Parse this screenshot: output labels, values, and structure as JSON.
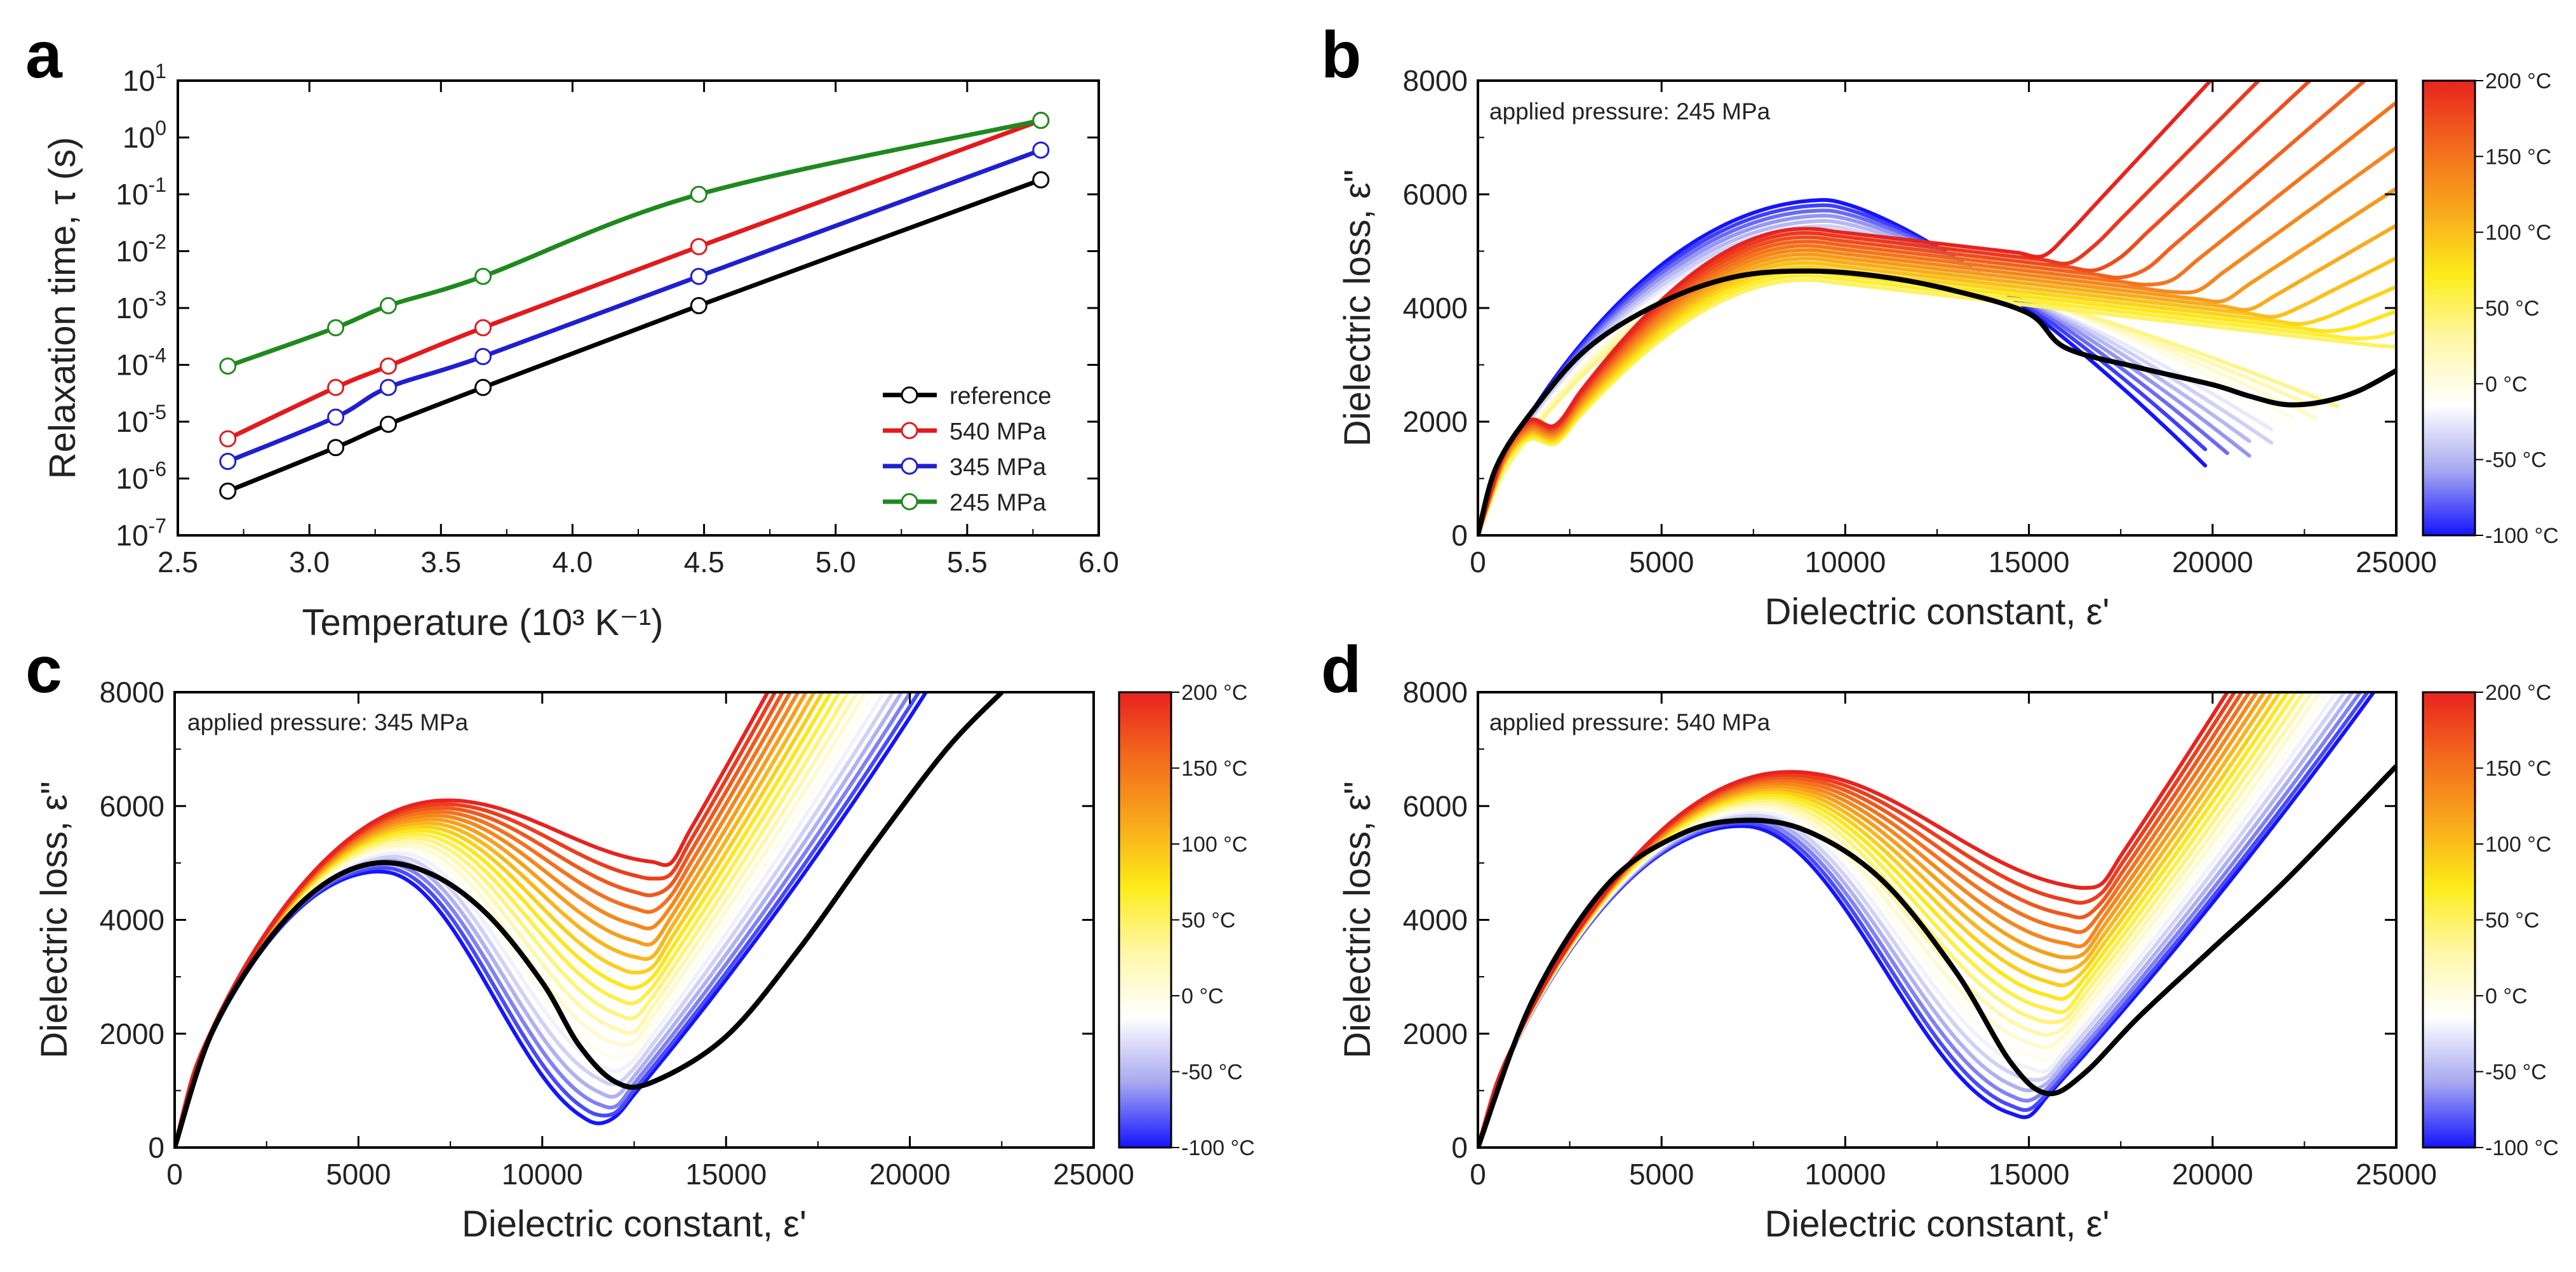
{
  "chart_data": [
    {
      "panel": "a",
      "type": "line",
      "xlabel": "Temperature (10³ K⁻¹)",
      "ylabel": "Relaxation time, τ (s)",
      "yscale": "log",
      "xlim": [
        2.5,
        6.0
      ],
      "ylim": [
        1e-07,
        10
      ],
      "xticks": [
        "2.5",
        "3.0",
        "3.5",
        "4.0",
        "4.5",
        "5.0",
        "5.5",
        "6.0"
      ],
      "yticks": [
        {
          "base": "10",
          "exp": "1"
        },
        {
          "base": "10",
          "exp": "0"
        },
        {
          "base": "10",
          "exp": "-1"
        },
        {
          "base": "10",
          "exp": "-2"
        },
        {
          "base": "10",
          "exp": "-3"
        },
        {
          "base": "10",
          "exp": "-4"
        },
        {
          "base": "10",
          "exp": "-5"
        },
        {
          "base": "10",
          "exp": "-6"
        },
        {
          "base": "10",
          "exp": "-7"
        }
      ],
      "legend_position": "bottom-right",
      "series": [
        {
          "name": "reference",
          "color": "#000000",
          "x": [
            2.69,
            3.1,
            3.3,
            3.66,
            4.48,
            5.78
          ],
          "y": [
            6e-07,
            3.5e-06,
            9e-06,
            4e-05,
            0.0011,
            0.18
          ]
        },
        {
          "name": "540 MPa",
          "color": "#e31a1c",
          "x": [
            2.69,
            3.1,
            3.3,
            3.66,
            4.48,
            5.78
          ],
          "y": [
            5e-06,
            4e-05,
            9.5e-05,
            0.00045,
            0.012,
            2.0
          ]
        },
        {
          "name": "345 MPa",
          "color": "#1f1fd0",
          "x": [
            2.69,
            3.1,
            3.3,
            3.66,
            4.48,
            5.78
          ],
          "y": [
            2e-06,
            1.2e-05,
            4e-05,
            0.00014,
            0.0036,
            0.6
          ]
        },
        {
          "name": "245 MPa",
          "color": "#1e8a1e",
          "x": [
            2.69,
            3.1,
            3.3,
            3.66,
            4.48,
            5.78
          ],
          "y": [
            9.5e-05,
            0.00045,
            0.0011,
            0.0036,
            0.1,
            2.0
          ]
        }
      ]
    },
    {
      "panel": "b",
      "type": "line",
      "annotation": "applied pressure: 245 MPa",
      "xlabel": "Dielectric constant, ε'",
      "ylabel": "Dielectric loss, ε\"",
      "xlim": [
        0,
        25000
      ],
      "ylim": [
        0,
        8000
      ],
      "xticks": [
        "0",
        "5000",
        "10000",
        "15000",
        "20000",
        "25000"
      ],
      "yticks": [
        "0",
        "2000",
        "4000",
        "6000",
        "8000"
      ],
      "series_count": 25,
      "temperature_range": [
        -100,
        200
      ],
      "reference": {
        "name": "reference",
        "color": "#000000",
        "x": [
          0,
          500,
          1500,
          3000,
          5000,
          7000,
          9000,
          11000,
          13000,
          15000,
          16000,
          18000,
          20000,
          21000,
          22000,
          23000,
          24000,
          25000
        ],
        "y": [
          0,
          1200,
          2200,
          3300,
          4100,
          4550,
          4650,
          4550,
          4300,
          3900,
          3300,
          2950,
          2650,
          2450,
          2300,
          2350,
          2550,
          2900
        ]
      }
    },
    {
      "panel": "c",
      "type": "line",
      "annotation": "applied pressure: 345 MPa",
      "xlabel": "Dielectric constant, ε'",
      "ylabel": "Dielectric loss, ε\"",
      "xlim": [
        0,
        25000
      ],
      "ylim": [
        0,
        8000
      ],
      "xticks": [
        "0",
        "5000",
        "10000",
        "15000",
        "20000",
        "25000"
      ],
      "yticks": [
        "0",
        "2000",
        "4000",
        "6000",
        "8000"
      ],
      "series_count": 20,
      "temperature_range": [
        -100,
        200
      ],
      "reference": {
        "name": "reference",
        "color": "#000000",
        "x": [
          0,
          1000,
          2500,
          4000,
          5500,
          7000,
          8500,
          10000,
          11000,
          12000,
          13000,
          15000,
          17000,
          19000,
          21000,
          22500
        ],
        "y": [
          0,
          2000,
          3600,
          4600,
          5000,
          4800,
          4100,
          2900,
          1800,
          1150,
          1150,
          1950,
          3500,
          5300,
          7000,
          8000
        ]
      }
    },
    {
      "panel": "d",
      "type": "line",
      "annotation": "applied pressure: 540 MPa",
      "xlabel": "Dielectric constant, ε'",
      "ylabel": "Dielectric loss, ε\"",
      "xlim": [
        0,
        25000
      ],
      "ylim": [
        0,
        8000
      ],
      "xticks": [
        "0",
        "5000",
        "10000",
        "15000",
        "20000",
        "25000"
      ],
      "yticks": [
        "0",
        "2000",
        "4000",
        "6000",
        "8000"
      ],
      "series_count": 20,
      "temperature_range": [
        -100,
        200
      ],
      "reference": {
        "name": "reference",
        "color": "#000000",
        "x": [
          0,
          1500,
          3500,
          5500,
          7250,
          9000,
          11000,
          13000,
          14500,
          15500,
          16500,
          18000,
          20000,
          22000,
          25000
        ],
        "y": [
          0,
          2600,
          4600,
          5500,
          5750,
          5550,
          4700,
          3100,
          1500,
          950,
          1300,
          2300,
          3500,
          4700,
          6700
        ]
      }
    }
  ],
  "colorbar": {
    "labels": [
      "200 °C",
      "150 °C",
      "100 °C",
      "50 °C",
      "0 °C",
      "-50 °C",
      "-100 °C"
    ],
    "stops": [
      "#e8231f",
      "#f36a1d",
      "#f8a81c",
      "#fcec1a",
      "#fff7a8",
      "#ffffff",
      "#a7a8f0",
      "#1414ff"
    ]
  },
  "panel_letters": [
    "a",
    "b",
    "c",
    "d"
  ]
}
